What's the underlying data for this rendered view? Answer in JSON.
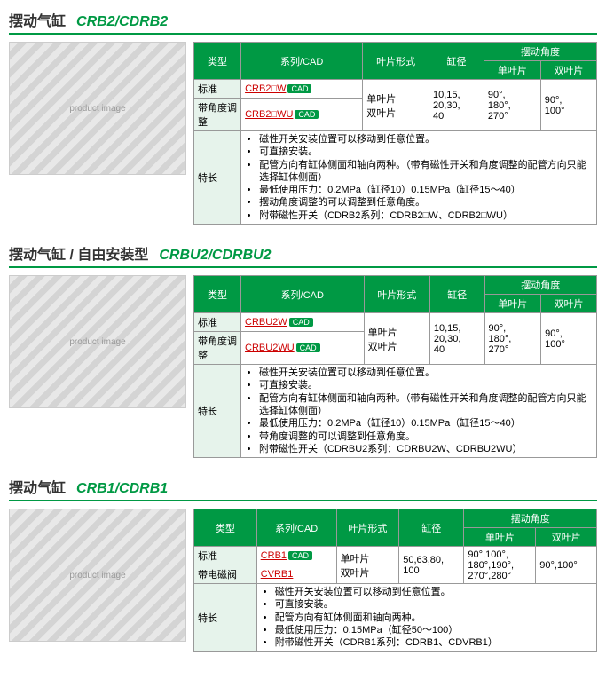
{
  "sections": [
    {
      "title_zh": "摆动气缸",
      "title_model": "CRB2/CDRB2",
      "headers": {
        "type": "类型",
        "series": "系列/CAD",
        "vane": "叶片形式",
        "bore": "缸径",
        "angle_group": "摆动角度",
        "angle_single": "单叶片",
        "angle_double": "双叶片"
      },
      "rows": [
        {
          "type": "标准",
          "series": "CRB2□W",
          "hasCad": true
        },
        {
          "type": "带角度调整",
          "series": "CRB2□WU",
          "hasCad": true
        }
      ],
      "shared": {
        "vane": "单叶片\n双叶片",
        "bore": "10,15,\n20,30,\n40",
        "angle_single": "90°,\n180°,\n270°",
        "angle_double": "90°,\n100°"
      },
      "features_label": "特长",
      "features": [
        "磁性开关安装位置可以移动到任意位置。",
        "可直接安装。",
        "配管方向有缸体侧面和轴向两种。（带有磁性开关和角度调整的配管方向只能选择缸体侧面）",
        "最低使用压力：0.2MPa（缸径10）0.15MPa（缸径15～40）",
        "摆动角度调整的可以调整到任意角度。",
        "附带磁性开关（CDRB2系列：CDRB2□W、CDRB2□WU）"
      ]
    },
    {
      "title_zh": "摆动气缸 / 自由安装型",
      "title_model": "CRBU2/CDRBU2",
      "headers": {
        "type": "类型",
        "series": "系列/CAD",
        "vane": "叶片形式",
        "bore": "缸径",
        "angle_group": "摆动角度",
        "angle_single": "单叶片",
        "angle_double": "双叶片"
      },
      "rows": [
        {
          "type": "标准",
          "series": "CRBU2W",
          "hasCad": true
        },
        {
          "type": "带角度调整",
          "series": "CRBU2WU",
          "hasCad": true
        }
      ],
      "shared": {
        "vane": "单叶片\n双叶片",
        "bore": "10,15,\n20,30,\n40",
        "angle_single": "90°,\n180°,\n270°",
        "angle_double": "90°,\n100°"
      },
      "features_label": "特长",
      "features": [
        "磁性开关安装位置可以移动到任意位置。",
        "可直接安装。",
        "配管方向有缸体侧面和轴向两种。（带有磁性开关和角度调整的配管方向只能选择缸体侧面）",
        "最低使用压力：0.2MPa（缸径10）0.15MPa（缸径15～40）",
        "带角度调整的可以调整到任意角度。",
        "附带磁性开关（CDRBU2系列：CDRBU2W、CDRBU2WU）"
      ]
    },
    {
      "title_zh": "摆动气缸",
      "title_model": "CRB1/CDRB1",
      "headers": {
        "type": "类型",
        "series": "系列/CAD",
        "vane": "叶片形式",
        "bore": "缸径",
        "angle_group": "摆动角度",
        "angle_single": "单叶片",
        "angle_double": "双叶片"
      },
      "rows": [
        {
          "type": "标准",
          "series": "CRB1",
          "hasCad": true
        },
        {
          "type": "带电磁阀",
          "series": "CVRB1",
          "hasCad": false
        }
      ],
      "shared": {
        "vane": "单叶片\n双叶片",
        "bore": "50,63,80,\n100",
        "angle_single": "90°,100°,\n180°,190°,\n270°,280°",
        "angle_double": "90°,100°"
      },
      "features_label": "特长",
      "features": [
        "磁性开关安装位置可以移动到任意位置。",
        "可直接安装。",
        "配管方向有缸体侧面和轴向两种。",
        "最低使用压力：0.15MPa（缸径50～100）",
        "附带磁性开关（CDRB1系列：CDRB1、CDVRB1）"
      ]
    }
  ],
  "cad_label": "CAD",
  "img_placeholder": "product image"
}
